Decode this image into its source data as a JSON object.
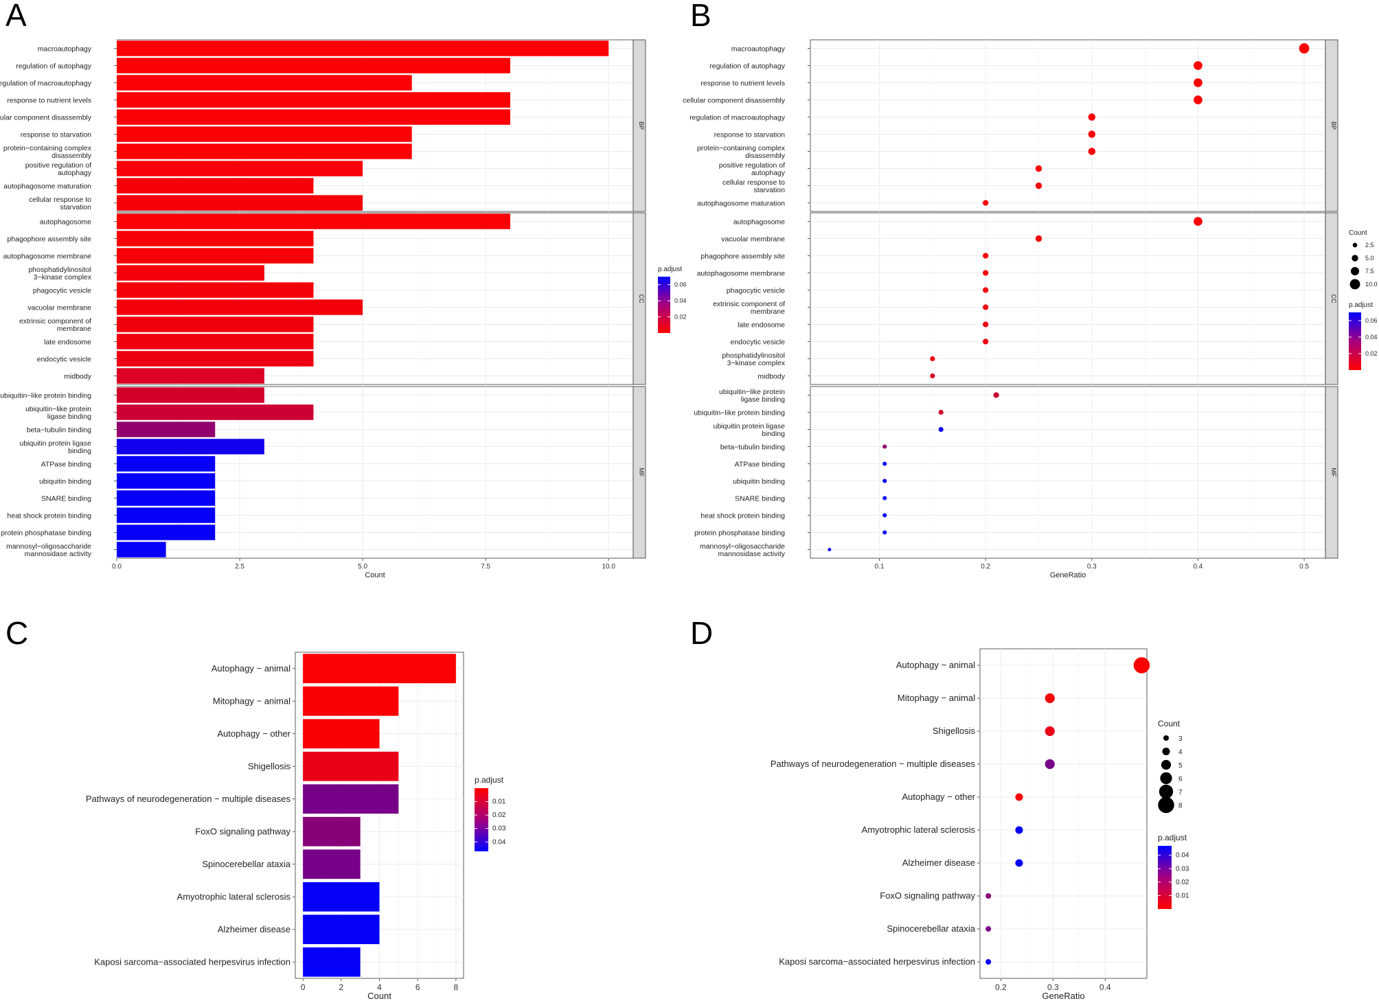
{
  "panel_labels": [
    "A",
    "B",
    "C",
    "D"
  ],
  "chart_data": [
    {
      "panel": "A",
      "type": "bar",
      "orientation": "horizontal",
      "xlabel": "Count",
      "xlim": [
        0,
        10.5
      ],
      "xticks": [
        "0.0",
        "2.5",
        "5.0",
        "7.5",
        "10.0"
      ],
      "facets": [
        {
          "name": "BP",
          "rows": [
            {
              "label": [
                "macroautophagy"
              ],
              "value": 10,
              "padj": 0.001
            },
            {
              "label": [
                "regulation of autophagy"
              ],
              "value": 8,
              "padj": 0.001
            },
            {
              "label": [
                "regulation of macroautophagy"
              ],
              "value": 6,
              "padj": 0.001
            },
            {
              "label": [
                "response to nutrient levels"
              ],
              "value": 8,
              "padj": 0.001
            },
            {
              "label": [
                "cellular component disassembly"
              ],
              "value": 8,
              "padj": 0.001
            },
            {
              "label": [
                "response to starvation"
              ],
              "value": 6,
              "padj": 0.001
            },
            {
              "label": [
                "protein−containing complex",
                "disassembly"
              ],
              "value": 6,
              "padj": 0.001
            },
            {
              "label": [
                "positive regulation of",
                "autophagy"
              ],
              "value": 5,
              "padj": 0.002
            },
            {
              "label": [
                "autophagosome maturation"
              ],
              "value": 4,
              "padj": 0.002
            },
            {
              "label": [
                "cellular response to",
                "starvation"
              ],
              "value": 5,
              "padj": 0.002
            }
          ]
        },
        {
          "name": "CC",
          "rows": [
            {
              "label": [
                "autophagosome"
              ],
              "value": 8,
              "padj": 0.001
            },
            {
              "label": [
                "phagophore assembly site"
              ],
              "value": 4,
              "padj": 0.002
            },
            {
              "label": [
                "autophagosome membrane"
              ],
              "value": 4,
              "padj": 0.002
            },
            {
              "label": [
                "phosphatidylinositol",
                "3−kinase complex"
              ],
              "value": 3,
              "padj": 0.003
            },
            {
              "label": [
                "phagocytic vesicle"
              ],
              "value": 4,
              "padj": 0.003
            },
            {
              "label": [
                "vacuolar membrane"
              ],
              "value": 5,
              "padj": 0.003
            },
            {
              "label": [
                "extrinsic component of",
                "membrane"
              ],
              "value": 4,
              "padj": 0.004
            },
            {
              "label": [
                "late endosome"
              ],
              "value": 4,
              "padj": 0.004
            },
            {
              "label": [
                "endocytic vesicle"
              ],
              "value": 4,
              "padj": 0.005
            },
            {
              "label": [
                "midbody"
              ],
              "value": 3,
              "padj": 0.01
            }
          ]
        },
        {
          "name": "MF",
          "rows": [
            {
              "label": [
                "ubiquitin−like protein binding"
              ],
              "value": 3,
              "padj": 0.012
            },
            {
              "label": [
                "ubiquitin−like protein",
                "ligase binding"
              ],
              "value": 4,
              "padj": 0.014
            },
            {
              "label": [
                "beta−tubulin binding"
              ],
              "value": 2,
              "padj": 0.03
            },
            {
              "label": [
                "ubiquitin protein ligase",
                "binding"
              ],
              "value": 3,
              "padj": 0.065
            },
            {
              "label": [
                "ATPase binding"
              ],
              "value": 2,
              "padj": 0.068
            },
            {
              "label": [
                "ubiquitin binding"
              ],
              "value": 2,
              "padj": 0.068
            },
            {
              "label": [
                "SNARE binding"
              ],
              "value": 2,
              "padj": 0.068
            },
            {
              "label": [
                "heat shock protein binding"
              ],
              "value": 2,
              "padj": 0.068
            },
            {
              "label": [
                "protein phosphatase binding"
              ],
              "value": 2,
              "padj": 0.068
            },
            {
              "label": [
                "mannosyl−oligosaccharide",
                "mannosidase activity"
              ],
              "value": 1,
              "padj": 0.068
            }
          ]
        }
      ],
      "legend": {
        "title": "p.adjust",
        "ticks": [
          "0.02",
          "0.04",
          "0.06"
        ],
        "range": [
          0.0,
          0.07
        ]
      }
    },
    {
      "panel": "B",
      "type": "scatter",
      "xlabel": "GeneRatio",
      "xlim": [
        0.035,
        0.52
      ],
      "xticks": [
        "0.1",
        "0.2",
        "0.3",
        "0.4",
        "0.5"
      ],
      "facets": [
        {
          "name": "BP",
          "rows": [
            {
              "label": [
                "macroautophagy"
              ],
              "x": 0.5,
              "count": 10,
              "padj": 0.001
            },
            {
              "label": [
                "regulation of autophagy"
              ],
              "x": 0.4,
              "count": 8,
              "padj": 0.001
            },
            {
              "label": [
                "response to nutrient levels"
              ],
              "x": 0.4,
              "count": 8,
              "padj": 0.001
            },
            {
              "label": [
                "cellular component disassembly"
              ],
              "x": 0.4,
              "count": 8,
              "padj": 0.001
            },
            {
              "label": [
                "regulation of macroautophagy"
              ],
              "x": 0.3,
              "count": 6,
              "padj": 0.001
            },
            {
              "label": [
                "response to starvation"
              ],
              "x": 0.3,
              "count": 6,
              "padj": 0.001
            },
            {
              "label": [
                "protein−containing complex",
                "disassembly"
              ],
              "x": 0.3,
              "count": 6,
              "padj": 0.001
            },
            {
              "label": [
                "positive regulation of",
                "autophagy"
              ],
              "x": 0.25,
              "count": 5,
              "padj": 0.002
            },
            {
              "label": [
                "cellular response to",
                "starvation"
              ],
              "x": 0.25,
              "count": 5,
              "padj": 0.002
            },
            {
              "label": [
                "autophagosome maturation"
              ],
              "x": 0.2,
              "count": 4,
              "padj": 0.002
            }
          ]
        },
        {
          "name": "CC",
          "rows": [
            {
              "label": [
                "autophagosome"
              ],
              "x": 0.4,
              "count": 8,
              "padj": 0.001
            },
            {
              "label": [
                "vacuolar membrane"
              ],
              "x": 0.25,
              "count": 5,
              "padj": 0.003
            },
            {
              "label": [
                "phagophore assembly site"
              ],
              "x": 0.2,
              "count": 4,
              "padj": 0.002
            },
            {
              "label": [
                "autophagosome membrane"
              ],
              "x": 0.2,
              "count": 4,
              "padj": 0.002
            },
            {
              "label": [
                "phagocytic vesicle"
              ],
              "x": 0.2,
              "count": 4,
              "padj": 0.003
            },
            {
              "label": [
                "extrinsic component of",
                "membrane"
              ],
              "x": 0.2,
              "count": 4,
              "padj": 0.004
            },
            {
              "label": [
                "late endosome"
              ],
              "x": 0.2,
              "count": 4,
              "padj": 0.004
            },
            {
              "label": [
                "endocytic vesicle"
              ],
              "x": 0.2,
              "count": 4,
              "padj": 0.005
            },
            {
              "label": [
                "phosphatidylinositol",
                "3−kinase complex"
              ],
              "x": 0.15,
              "count": 3,
              "padj": 0.003
            },
            {
              "label": [
                "midbody"
              ],
              "x": 0.15,
              "count": 3,
              "padj": 0.01
            }
          ]
        },
        {
          "name": "MF",
          "rows": [
            {
              "label": [
                "ubiquitin−like protein",
                "ligase binding"
              ],
              "x": 0.21,
              "count": 4,
              "padj": 0.014
            },
            {
              "label": [
                "ubiquitin−like protein binding"
              ],
              "x": 0.158,
              "count": 3,
              "padj": 0.012
            },
            {
              "label": [
                "ubiquitin protein ligase",
                "binding"
              ],
              "x": 0.158,
              "count": 3,
              "padj": 0.065
            },
            {
              "label": [
                "beta−tubulin binding"
              ],
              "x": 0.105,
              "count": 2,
              "padj": 0.03
            },
            {
              "label": [
                "ATPase binding"
              ],
              "x": 0.105,
              "count": 2,
              "padj": 0.068
            },
            {
              "label": [
                "ubiquitin binding"
              ],
              "x": 0.105,
              "count": 2,
              "padj": 0.068
            },
            {
              "label": [
                "SNARE binding"
              ],
              "x": 0.105,
              "count": 2,
              "padj": 0.068
            },
            {
              "label": [
                "heat shock protein binding"
              ],
              "x": 0.105,
              "count": 2,
              "padj": 0.068
            },
            {
              "label": [
                "protein phosphatase binding"
              ],
              "x": 0.105,
              "count": 2,
              "padj": 0.068
            },
            {
              "label": [
                "mannosyl−oligosaccharide",
                "mannosidase activity"
              ],
              "x": 0.053,
              "count": 1,
              "padj": 0.068
            }
          ]
        }
      ],
      "size_legend": {
        "title": "Count",
        "values": [
          2.5,
          5,
          7.5,
          10
        ],
        "labels": [
          "2.5",
          "5.0",
          "7.5",
          "10.0"
        ]
      },
      "legend": {
        "title": "p.adjust",
        "ticks": [
          "0.06",
          "0.04",
          "0.02"
        ],
        "range": [
          0.0,
          0.07
        ]
      }
    },
    {
      "panel": "C",
      "type": "bar",
      "orientation": "horizontal",
      "xlabel": "Count",
      "xlim": [
        -0.4,
        8.4
      ],
      "xticks": [
        "0",
        "2",
        "4",
        "6",
        "8"
      ],
      "rows": [
        {
          "label": "Autophagy − animal",
          "value": 8,
          "padj": 0.0005
        },
        {
          "label": "Mitophagy − animal",
          "value": 5,
          "padj": 0.001
        },
        {
          "label": "Autophagy − other",
          "value": 4,
          "padj": 0.001
        },
        {
          "label": "Shigellosis",
          "value": 5,
          "padj": 0.004
        },
        {
          "label": "Pathways of neurodegeneration − multiple diseases",
          "value": 5,
          "padj": 0.025
        },
        {
          "label": "FoxO signaling pathway",
          "value": 3,
          "padj": 0.022
        },
        {
          "label": "Spinocerebellar ataxia",
          "value": 3,
          "padj": 0.025
        },
        {
          "label": "Amyotrophic lateral sclerosis",
          "value": 4,
          "padj": 0.046
        },
        {
          "label": "Alzheimer disease",
          "value": 4,
          "padj": 0.046
        },
        {
          "label": "Kaposi sarcoma−associated herpesvirus infection",
          "value": 3,
          "padj": 0.046
        }
      ],
      "legend": {
        "title": "p.adjust",
        "ticks": [
          "0.01",
          "0.02",
          "0.03",
          "0.04"
        ],
        "range": [
          0.0,
          0.047
        ]
      }
    },
    {
      "panel": "D",
      "type": "scatter",
      "xlabel": "GeneRatio",
      "xlim": [
        0.16,
        0.48
      ],
      "xticks": [
        "0.2",
        "0.3",
        "0.4"
      ],
      "rows": [
        {
          "label": "Autophagy − animal",
          "x": 0.47,
          "count": 8,
          "padj": 0.0005
        },
        {
          "label": "Mitophagy − animal",
          "x": 0.294,
          "count": 5,
          "padj": 0.001
        },
        {
          "label": "Shigellosis",
          "x": 0.294,
          "count": 5,
          "padj": 0.004
        },
        {
          "label": "Pathways of neurodegeneration − multiple diseases",
          "x": 0.294,
          "count": 5,
          "padj": 0.025
        },
        {
          "label": "Autophagy − other",
          "x": 0.235,
          "count": 4,
          "padj": 0.001
        },
        {
          "label": "Amyotrophic lateral sclerosis",
          "x": 0.235,
          "count": 4,
          "padj": 0.046
        },
        {
          "label": "Alzheimer disease",
          "x": 0.235,
          "count": 4,
          "padj": 0.046
        },
        {
          "label": "FoxO signaling pathway",
          "x": 0.176,
          "count": 3,
          "padj": 0.022
        },
        {
          "label": "Spinocerebellar ataxia",
          "x": 0.176,
          "count": 3,
          "padj": 0.025
        },
        {
          "label": "Kaposi sarcoma−associated herpesvirus infection",
          "x": 0.176,
          "count": 3,
          "padj": 0.046
        }
      ],
      "size_legend": {
        "title": "Count",
        "values": [
          3,
          4,
          5,
          6,
          7,
          8
        ],
        "labels": [
          "3",
          "4",
          "5",
          "6",
          "7",
          "8"
        ]
      },
      "legend": {
        "title": "p.adjust",
        "ticks": [
          "0.04",
          "0.03",
          "0.02",
          "0.01"
        ],
        "range": [
          0.0,
          0.047
        ]
      }
    }
  ],
  "colors": {
    "low": "#ff0000",
    "high": "#0000ff",
    "grid": "#ebebeb",
    "strip": "#d9d9d9",
    "bar_sep": "#ffffff"
  }
}
